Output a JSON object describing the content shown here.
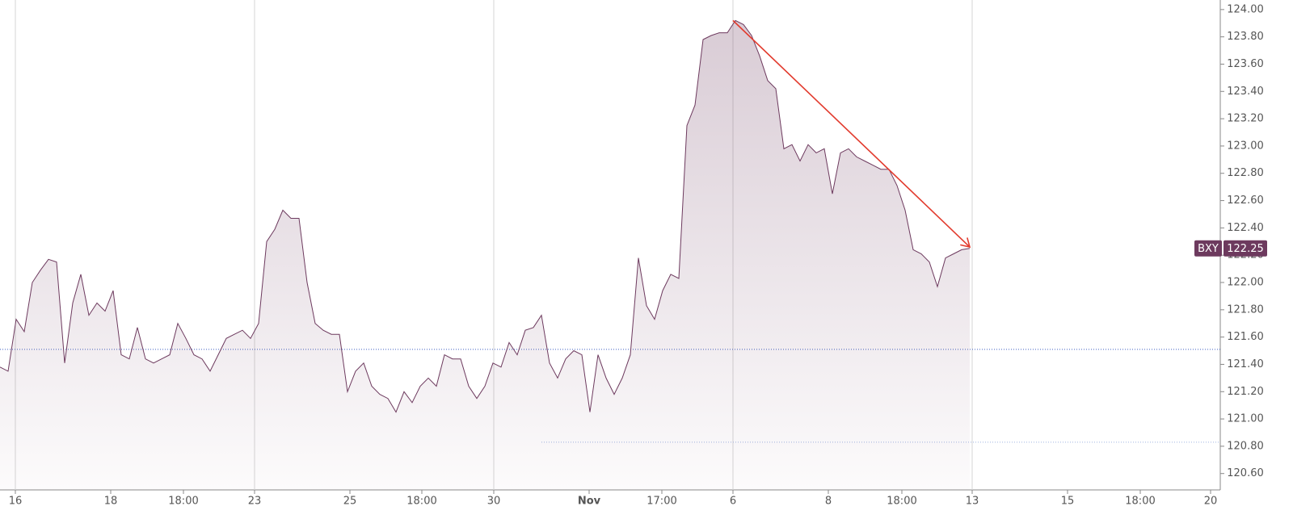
{
  "chart_data": {
    "type": "area",
    "x": [
      0,
      1,
      2,
      3,
      4,
      5,
      6,
      7,
      8,
      9,
      10,
      11,
      12,
      13,
      14,
      15,
      16,
      17,
      18,
      19,
      20,
      21,
      22,
      23,
      24,
      25,
      26,
      27,
      28,
      29,
      30,
      31,
      32,
      33,
      34,
      35,
      36,
      37,
      38,
      39,
      40,
      41,
      42,
      43,
      44,
      45,
      46,
      47,
      48,
      49,
      50,
      51,
      52,
      53,
      54,
      55,
      56,
      57,
      58,
      59,
      60,
      61,
      62,
      63,
      64,
      65,
      66,
      67,
      68,
      69,
      70,
      71,
      72,
      73,
      74,
      75,
      76,
      77,
      78,
      79,
      80,
      81,
      82,
      83,
      84,
      85,
      86,
      87,
      88,
      89,
      90,
      91,
      92,
      93,
      94,
      95,
      96,
      97,
      98,
      99,
      100,
      101,
      102,
      103,
      104,
      105,
      106,
      107,
      108,
      109,
      110,
      111,
      112,
      113,
      114,
      115,
      116,
      117,
      118,
      119,
      120
    ],
    "series": [
      {
        "name": "BXY",
        "color": "#6d3a5e",
        "values": [
          121.38,
          121.35,
          121.73,
          121.64,
          122.0,
          122.09,
          122.17,
          122.15,
          121.41,
          121.85,
          122.06,
          121.76,
          121.85,
          121.79,
          121.94,
          121.47,
          121.44,
          121.67,
          121.44,
          121.41,
          121.44,
          121.47,
          121.7,
          121.59,
          121.47,
          121.44,
          121.35,
          121.47,
          121.59,
          121.62,
          121.65,
          121.59,
          121.7,
          122.3,
          122.39,
          122.53,
          122.47,
          122.47,
          122.0,
          121.7,
          121.65,
          121.62,
          121.62,
          121.2,
          121.35,
          121.41,
          121.24,
          121.18,
          121.15,
          121.05,
          121.2,
          121.12,
          121.24,
          121.3,
          121.24,
          121.47,
          121.44,
          121.44,
          121.24,
          121.15,
          121.24,
          121.41,
          121.38,
          121.56,
          121.47,
          121.65,
          121.67,
          121.76,
          121.41,
          121.3,
          121.44,
          121.5,
          121.47,
          121.05,
          121.47,
          121.3,
          121.18,
          121.3,
          121.47,
          122.18,
          121.83,
          121.73,
          121.94,
          122.06,
          122.03,
          123.15,
          123.3,
          123.78,
          123.81,
          123.83,
          123.83,
          123.92,
          123.89,
          123.81,
          123.66,
          123.48,
          123.42,
          122.98,
          123.01,
          122.89,
          123.01,
          122.95,
          122.98,
          122.65,
          122.95,
          122.98,
          122.92,
          122.89,
          122.86,
          122.83,
          122.83,
          122.71,
          122.53,
          122.24,
          122.21,
          122.15,
          121.97,
          122.18,
          122.21,
          122.24,
          122.25
        ]
      }
    ],
    "xlim": [
      0,
      151
    ],
    "xticks": [
      {
        "value": 1.9,
        "label": "16"
      },
      {
        "value": 13.7,
        "label": "18"
      },
      {
        "value": 22.7,
        "label": "18:00"
      },
      {
        "value": 31.5,
        "label": "23"
      },
      {
        "value": 43.3,
        "label": "25"
      },
      {
        "value": 52.2,
        "label": "18:00"
      },
      {
        "value": 61.1,
        "label": "30"
      },
      {
        "value": 72.9,
        "label": "Nov",
        "bold": true
      },
      {
        "value": 81.9,
        "label": "17:00"
      },
      {
        "value": 90.7,
        "label": "6"
      },
      {
        "value": 102.5,
        "label": "8"
      },
      {
        "value": 111.6,
        "label": "18:00"
      },
      {
        "value": 120.3,
        "label": "13"
      },
      {
        "value": 132.1,
        "label": "15"
      },
      {
        "value": 141.1,
        "label": "18:00"
      },
      {
        "value": 149.8,
        "label": "20"
      }
    ],
    "vgrid": [
      1.9,
      31.5,
      61.1,
      90.7,
      120.3
    ],
    "ylim": [
      120.48,
      124.07
    ],
    "yticks": [
      {
        "value": 120.6,
        "label": "120.60"
      },
      {
        "value": 120.8,
        "label": "120.80"
      },
      {
        "value": 121.0,
        "label": "121.00"
      },
      {
        "value": 121.2,
        "label": "121.20"
      },
      {
        "value": 121.4,
        "label": "121.40"
      },
      {
        "value": 121.6,
        "label": "121.60"
      },
      {
        "value": 121.8,
        "label": "121.80"
      },
      {
        "value": 122.0,
        "label": "122.00"
      },
      {
        "value": 122.2,
        "label": "122.20"
      },
      {
        "value": 122.4,
        "label": "122.40"
      },
      {
        "value": 122.6,
        "label": "122.60"
      },
      {
        "value": 122.8,
        "label": "122.80"
      },
      {
        "value": 123.0,
        "label": "123.00"
      },
      {
        "value": 123.2,
        "label": "123.20"
      },
      {
        "value": 123.4,
        "label": "123.40"
      },
      {
        "value": 123.6,
        "label": "123.60"
      },
      {
        "value": 123.8,
        "label": "123.80"
      },
      {
        "value": 124.0,
        "label": "124.00"
      }
    ],
    "hlines": [
      {
        "value": 121.51,
        "color": "#3d5fc4",
        "from": 0
      },
      {
        "value": 120.83,
        "color": "#9fb3e0",
        "from": 67
      }
    ],
    "trendline": {
      "x": [
        90.7,
        120
      ],
      "y": [
        123.92,
        122.26
      ],
      "color": "#e23b2e"
    }
  }
}
